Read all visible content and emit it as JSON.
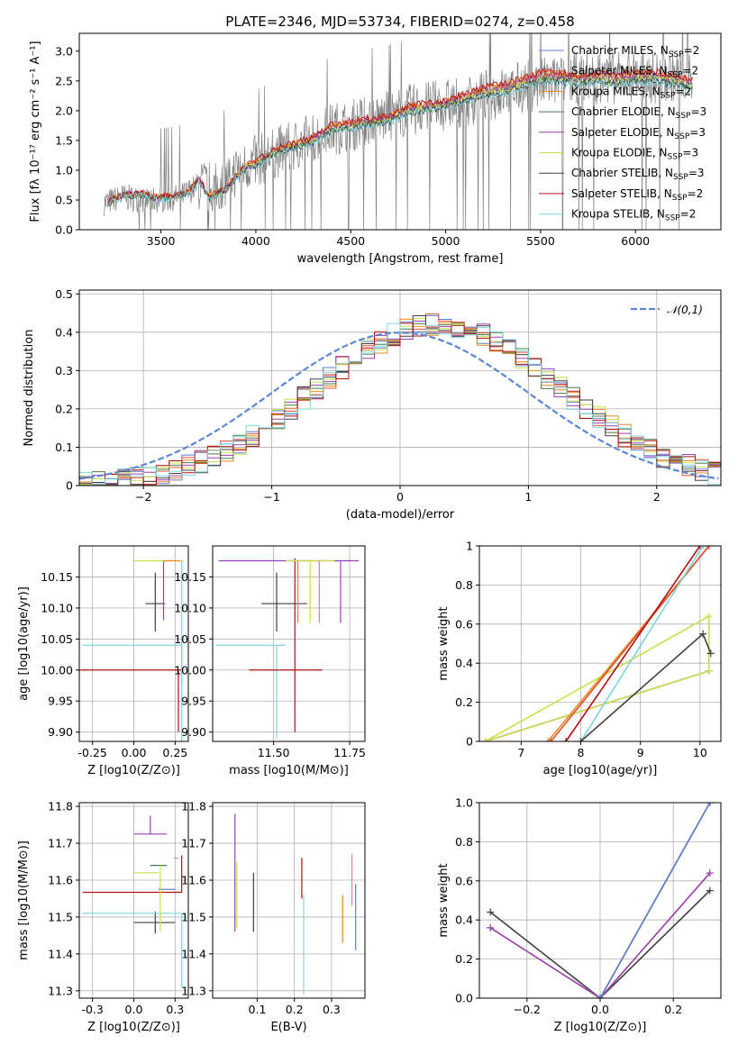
{
  "figure": {
    "title": "PLATE=2346, MJD=53734, FIBERID=0274, z=0.458"
  },
  "chart_data": [
    {
      "id": "spectrum",
      "type": "line",
      "xlabel": "wavelength [Angstrom, rest frame]",
      "ylabel": "Flux [fλ 10⁻¹⁷ erg cm⁻² s⁻¹ A⁻¹]",
      "xlim": [
        3070,
        6450
      ],
      "ylim": [
        0,
        3.3
      ],
      "xticks": [
        3500,
        4000,
        4500,
        5000,
        5500,
        6000
      ],
      "yticks": [
        0.0,
        0.5,
        1.0,
        1.5,
        2.0,
        2.5,
        3.0
      ],
      "grid": false,
      "legend_position": "top-right",
      "observed": {
        "color": "#808080",
        "x": [
          3200,
          3300,
          3400,
          3500,
          3600,
          3700,
          3800,
          3900,
          4000,
          4100,
          4200,
          4300,
          4400,
          4500,
          4600,
          4700,
          4800,
          4900,
          5000,
          5100,
          5200,
          5300,
          5400,
          5500,
          5600,
          5700,
          5800,
          5900,
          6000,
          6100,
          6200,
          6300
        ],
        "y": [
          0.45,
          0.55,
          0.5,
          0.5,
          0.55,
          0.75,
          0.7,
          1.0,
          1.15,
          1.3,
          1.4,
          1.55,
          1.7,
          1.75,
          1.85,
          1.9,
          2.0,
          2.05,
          2.1,
          2.15,
          2.25,
          2.3,
          2.4,
          2.45,
          2.5,
          2.55,
          2.55,
          2.55,
          2.6,
          2.55,
          2.6,
          2.55
        ]
      },
      "series": [
        {
          "name": "Chabrier MILES, N_SSP=2",
          "color": "#5b7fd0",
          "mult": 1.0
        },
        {
          "name": "Salpeter MILES, N_SSP=2",
          "color": "#e05030",
          "mult": 1.03
        },
        {
          "name": "Kroupa MILES, N_SSP=2",
          "color": "#e68a1f",
          "mult": 1.02
        },
        {
          "name": "Chabrier ELODIE, N_SSP=3",
          "color": "#4a7a4a",
          "mult": 0.99
        },
        {
          "name": "Salpeter ELODIE, N_SSP=3",
          "color": "#9b3fb5",
          "mult": 1.01
        },
        {
          "name": "Kroupa ELODIE, N_SSP=3",
          "color": "#c9e04a",
          "mult": 1.0
        },
        {
          "name": "Chabrier STELIB, N_SSP=3",
          "color": "#404040",
          "mult": 0.98
        },
        {
          "name": "Salpeter STELIB, N_SSP=2",
          "color": "#b01010",
          "mult": 1.04
        },
        {
          "name": "Kroupa STELIB, N_SSP=2",
          "color": "#7fd4e0",
          "mult": 0.97
        }
      ],
      "model": {
        "x": [
          3220,
          3300,
          3400,
          3480,
          3550,
          3650,
          3700,
          3750,
          3800,
          3850,
          3900,
          3950,
          4000,
          4050,
          4100,
          4200,
          4300,
          4400,
          4500,
          4600,
          4700,
          4800,
          4900,
          5000,
          5100,
          5200,
          5300,
          5400,
          5500,
          5600,
          5700,
          5800,
          5900,
          6000,
          6100,
          6200,
          6300
        ],
        "y": [
          0.45,
          0.58,
          0.6,
          0.52,
          0.55,
          0.62,
          0.85,
          0.55,
          0.6,
          0.7,
          0.9,
          1.05,
          1.1,
          1.2,
          1.3,
          1.4,
          1.5,
          1.7,
          1.75,
          1.8,
          1.85,
          2.0,
          2.05,
          2.1,
          2.2,
          2.3,
          2.35,
          2.45,
          2.55,
          2.55,
          2.5,
          2.55,
          2.5,
          2.55,
          2.55,
          2.5,
          2.45
        ]
      }
    },
    {
      "id": "residuals",
      "type": "line",
      "xlabel": "(data-model)/error",
      "ylabel": "Normed distribution",
      "xlim": [
        -2.5,
        2.5
      ],
      "ylim": [
        0,
        0.51
      ],
      "xticks": [
        -2,
        -1,
        0,
        1,
        2
      ],
      "yticks": [
        0.0,
        0.1,
        0.2,
        0.3,
        0.4,
        0.5
      ],
      "grid": true,
      "legend_position": "top-right",
      "gaussian_label": "𝒩(0,1)",
      "gaussian_color": "#5b86d6",
      "histogram_peak_shift": 0.3,
      "histogram_width": 0.95
    },
    {
      "id": "age_vs_Z",
      "type": "errorbar",
      "xlabel": "Z [log10(Z/Z⊙)]",
      "ylabel": "age  [log10(age/yr)]",
      "xlim": [
        -0.33,
        0.33
      ],
      "ylim": [
        9.885,
        10.2
      ],
      "xticks": [
        -0.25,
        0.0,
        0.25
      ],
      "yticks": [
        9.9,
        9.95,
        10.0,
        10.05,
        10.1,
        10.15
      ],
      "grid": true,
      "points": [
        {
          "x": 0.13,
          "y": 10.107,
          "xerr": [
            0.06,
            0.06
          ],
          "yerr": [
            0.045,
            0.05
          ],
          "color": "#404040"
        },
        {
          "x": 0.29,
          "y": 10.04,
          "xerr": [
            0.6,
            0.0
          ],
          "yerr": [
            0.06,
            0.0
          ],
          "color": "#7fd4e0"
        },
        {
          "x": 0.27,
          "y": 10.0,
          "xerr": [
            0.6,
            0.02
          ],
          "yerr": [
            0.1,
            0.0
          ],
          "color": "#b01010"
        },
        {
          "x": 0.18,
          "y": 10.1,
          "xerr": [
            0.0,
            0.0
          ],
          "yerr": [
            0.02,
            0.075
          ],
          "color": "#9b3fb5"
        },
        {
          "x": 0.0,
          "y": 10.176,
          "xerr": [
            0.0,
            0.3
          ],
          "yerr": [
            0.0,
            0.0
          ],
          "color": "#c9e04a"
        },
        {
          "x": 0.29,
          "y": 10.176,
          "xerr": [
            0.0,
            0.0
          ],
          "yerr": [
            0.3,
            0.0
          ],
          "color": "#7fd4e0"
        },
        {
          "x": 0.18,
          "y": 10.176,
          "xerr": [
            0.0,
            0.1
          ],
          "yerr": [
            0.0,
            0.0
          ],
          "color": "#e68a1f"
        }
      ]
    },
    {
      "id": "age_vs_mass",
      "type": "errorbar",
      "xlabel": "mass [log10(M/M⊙)]",
      "ylabel": "",
      "xlim": [
        11.3,
        11.8
      ],
      "ylim": [
        9.885,
        10.2
      ],
      "xticks": [
        11.5,
        11.75
      ],
      "yticks": [
        9.9,
        9.95,
        10.0,
        10.05,
        10.1,
        10.15
      ],
      "grid": true,
      "points": [
        {
          "x": 11.51,
          "y": 10.107,
          "xerr": [
            0.05,
            0.1
          ],
          "yerr": [
            0.045,
            0.05
          ],
          "color": "#404040"
        },
        {
          "x": 11.51,
          "y": 10.04,
          "xerr": [
            0.2,
            0.03
          ],
          "yerr": [
            0.15,
            0.0
          ],
          "color": "#7fd4e0"
        },
        {
          "x": 11.57,
          "y": 10.0,
          "xerr": [
            0.15,
            0.09
          ],
          "yerr": [
            0.1,
            0.18
          ],
          "color": "#b01010"
        },
        {
          "x": 11.72,
          "y": 10.176,
          "xerr": [
            0.4,
            0.06
          ],
          "yerr": [
            0.1,
            0.0
          ],
          "color": "#9b3fb5"
        },
        {
          "x": 11.62,
          "y": 10.176,
          "xerr": [
            0.08,
            0.08
          ],
          "yerr": [
            0.1,
            0.0
          ],
          "color": "#c9e04a"
        },
        {
          "x": 11.58,
          "y": 10.176,
          "xerr": [
            0.0,
            0.0
          ],
          "yerr": [
            0.1,
            0.0
          ],
          "color": "#e68a1f"
        },
        {
          "x": 11.65,
          "y": 10.176,
          "xerr": [
            0.0,
            0.0
          ],
          "yerr": [
            0.1,
            0.0
          ],
          "color": "#e080a0"
        }
      ]
    },
    {
      "id": "weight_vs_age",
      "type": "line",
      "xlabel": "age  [log10(age/yr)]",
      "ylabel": "mass weight",
      "xlim": [
        6.3,
        10.35
      ],
      "ylim": [
        0,
        1.0
      ],
      "xticks": [
        7,
        8,
        9,
        10
      ],
      "yticks": [
        0.0,
        0.2,
        0.4,
        0.6,
        0.8,
        1.0
      ],
      "grid": true,
      "series": [
        {
          "color": "#9b3fb5",
          "x": [
            6.4,
            10.15
          ],
          "y": [
            0.0,
            0.36
          ]
        },
        {
          "color": "#c9e04a",
          "x": [
            6.4,
            10.15,
            10.15,
            6.4
          ],
          "y": [
            0.0,
            0.64,
            0.36,
            0.0
          ]
        },
        {
          "color": "#e68a1f",
          "x": [
            7.45,
            10.15
          ],
          "y": [
            0.0,
            1.0
          ]
        },
        {
          "color": "#e05030",
          "x": [
            7.5,
            10.15
          ],
          "y": [
            0.0,
            1.0
          ]
        },
        {
          "color": "#b01010",
          "x": [
            7.75,
            10.0
          ],
          "y": [
            0.0,
            1.0
          ]
        },
        {
          "color": "#7fd4e0",
          "x": [
            8.0,
            10.05
          ],
          "y": [
            0.0,
            1.0
          ]
        },
        {
          "color": "#404040",
          "x": [
            8.0,
            10.05,
            10.18
          ],
          "y": [
            0.0,
            0.55,
            0.45
          ]
        }
      ]
    },
    {
      "id": "mass_vs_Z",
      "type": "errorbar",
      "xlabel": "Z [log10(Z/Z⊙)]",
      "ylabel": "mass [log10(M/M⊙)]",
      "xlim": [
        -0.33,
        0.33
      ],
      "ylim": [
        11.28,
        11.81
      ],
      "xticks": [
        -0.25,
        0.0,
        0.25
      ],
      "yticks": [
        11.3,
        11.4,
        11.5,
        11.6,
        11.7,
        11.8
      ],
      "grid": true,
      "points": [
        {
          "x": 0.13,
          "y": 11.485,
          "xerr": [
            0.13,
            0.12
          ],
          "yerr": [
            0.03,
            0.03
          ],
          "color": "#404040"
        },
        {
          "x": 0.29,
          "y": 11.51,
          "xerr": [
            0.6,
            0.0
          ],
          "yerr": [
            0.2,
            0.0
          ],
          "color": "#7fd4e0"
        },
        {
          "x": 0.29,
          "y": 11.567,
          "xerr": [
            0.6,
            0.0
          ],
          "yerr": [
            0.0,
            0.1
          ],
          "color": "#b01010"
        },
        {
          "x": 0.1,
          "y": 11.725,
          "xerr": [
            0.1,
            0.1
          ],
          "yerr": [
            0.0,
            0.05
          ],
          "color": "#9b3fb5"
        },
        {
          "x": 0.05,
          "y": 11.62,
          "xerr": [
            0.05,
            0.1
          ],
          "yerr": [
            0.0,
            0.0
          ],
          "color": "#c9e04a"
        },
        {
          "x": 0.15,
          "y": 11.64,
          "xerr": [
            0.05,
            0.05
          ],
          "yerr": [
            0.0,
            0.0
          ],
          "color": "#4a7a4a"
        },
        {
          "x": 0.2,
          "y": 11.575,
          "xerr": [
            0.05,
            0.05
          ],
          "yerr": [
            0.0,
            0.0
          ],
          "color": "#5b7fd0"
        },
        {
          "x": 0.27,
          "y": 11.66,
          "xerr": [
            0.03,
            0.0
          ],
          "yerr": [
            0.0,
            0.0
          ],
          "color": "#e080a0"
        },
        {
          "x": 0.16,
          "y": 11.55,
          "xerr": [
            0.0,
            0.0
          ],
          "yerr": [
            0.09,
            0.09
          ],
          "color": "#c9e04a"
        }
      ]
    },
    {
      "id": "mass_vs_ebv",
      "type": "errorbar",
      "xlabel": "E(B-V)",
      "ylabel": "",
      "xlim": [
        -0.02,
        0.39
      ],
      "ylim": [
        11.28,
        11.81
      ],
      "xticks": [
        0.1,
        0.2,
        0.3
      ],
      "yticks": [
        11.3,
        11.4,
        11.5,
        11.6,
        11.7,
        11.8
      ],
      "grid": true,
      "points": [
        {
          "x": 0.04,
          "y": 11.62,
          "xerr": [
            0,
            0
          ],
          "yerr": [
            0.16,
            0.16
          ],
          "color": "#9b3fb5"
        },
        {
          "x": 0.045,
          "y": 11.55,
          "xerr": [
            0,
            0
          ],
          "yerr": [
            0.08,
            0.1
          ],
          "color": "#c9e04a"
        },
        {
          "x": 0.09,
          "y": 11.54,
          "xerr": [
            0,
            0
          ],
          "yerr": [
            0.08,
            0.08
          ],
          "color": "#404040"
        },
        {
          "x": 0.22,
          "y": 11.6,
          "xerr": [
            0,
            0
          ],
          "yerr": [
            0.05,
            0.06
          ],
          "color": "#b01010"
        },
        {
          "x": 0.225,
          "y": 11.43,
          "xerr": [
            0,
            0
          ],
          "yerr": [
            0.14,
            0.13
          ],
          "color": "#7fd4e0"
        },
        {
          "x": 0.33,
          "y": 11.5,
          "xerr": [
            0,
            0
          ],
          "yerr": [
            0.07,
            0.06
          ],
          "color": "#e68a1f"
        },
        {
          "x": 0.355,
          "y": 11.6,
          "xerr": [
            0,
            0
          ],
          "yerr": [
            0.07,
            0.07
          ],
          "color": "#e080a0"
        },
        {
          "x": 0.365,
          "y": 11.5,
          "xerr": [
            0,
            0
          ],
          "yerr": [
            0.09,
            0.09
          ],
          "color": "#5b7fd0"
        }
      ]
    },
    {
      "id": "weight_vs_Z",
      "type": "line",
      "xlabel": "Z [log10(Z/Z⊙)]",
      "ylabel": "mass weight",
      "xlim": [
        -0.33,
        0.33
      ],
      "ylim": [
        0,
        1.0
      ],
      "xticks": [
        -0.2,
        0.0,
        0.2
      ],
      "yticks": [
        0.0,
        0.2,
        0.4,
        0.6,
        0.8,
        1.0
      ],
      "grid": true,
      "series": [
        {
          "color": "#404040",
          "x": [
            -0.3,
            0.0,
            0.3
          ],
          "y": [
            0.44,
            0.0,
            0.55
          ]
        },
        {
          "color": "#c9e04a",
          "x": [
            -0.3,
            0.0,
            0.3
          ],
          "y": [
            0.36,
            0.0,
            0.64
          ]
        },
        {
          "color": "#9b3fb5",
          "x": [
            -0.3,
            0.0,
            0.3
          ],
          "y": [
            0.36,
            0.0,
            0.64
          ]
        },
        {
          "color": "#7fd4e0",
          "x": [
            0.0,
            0.3
          ],
          "y": [
            0.0,
            1.0
          ]
        },
        {
          "color": "#e68a1f",
          "x": [
            0.0,
            0.3
          ],
          "y": [
            0.0,
            1.0
          ]
        },
        {
          "color": "#5b7fd0",
          "x": [
            0.0,
            0.3
          ],
          "y": [
            0.0,
            1.0
          ]
        }
      ]
    }
  ]
}
